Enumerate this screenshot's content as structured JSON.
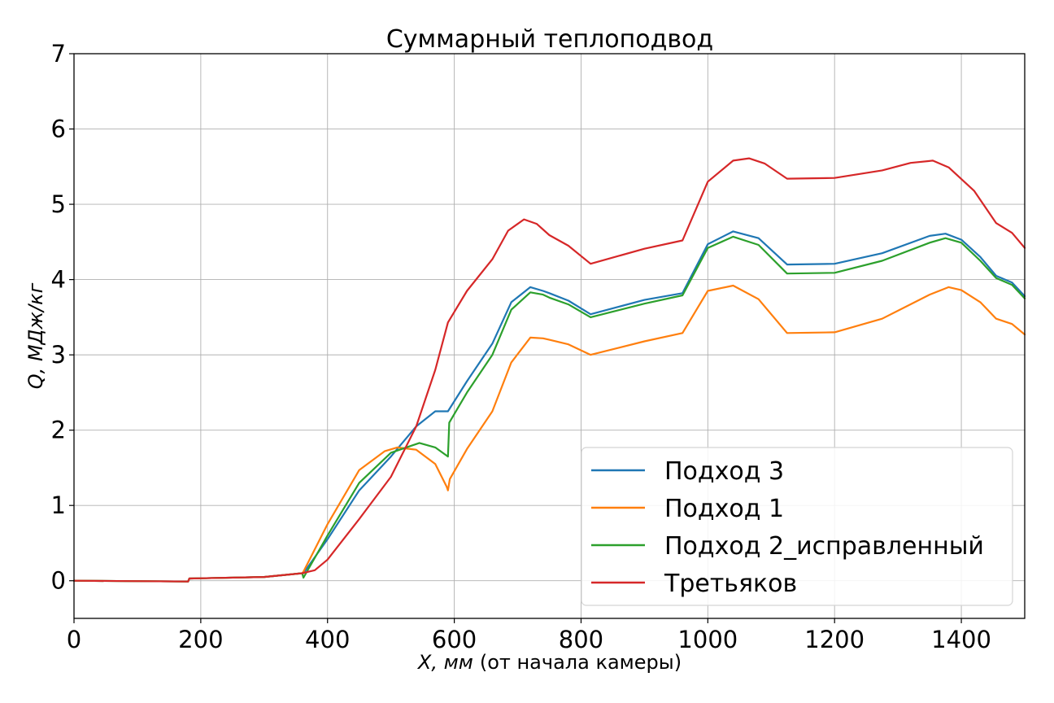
{
  "chart_data": {
    "type": "line",
    "title": "Суммарный теплоподвод",
    "xlabel_italic": "X, мм",
    "xlabel_rest": "(от начала камеры)",
    "ylabel": "Q, МДж/кг",
    "xlim": [
      0,
      1500
    ],
    "ylim": [
      -0.5,
      7
    ],
    "xticks": [
      0,
      200,
      400,
      600,
      800,
      1000,
      1200,
      1400
    ],
    "yticks": [
      0,
      1,
      2,
      3,
      4,
      5,
      6,
      7
    ],
    "grid": true,
    "legend_position": "lower-right",
    "series": [
      {
        "name": "Подход 3",
        "color": "#1f77b4",
        "points": [
          [
            0,
            0
          ],
          [
            180,
            -0.01
          ],
          [
            182,
            0.03
          ],
          [
            300,
            0.05
          ],
          [
            360,
            0.1
          ],
          [
            362,
            0.1
          ],
          [
            400,
            0.55
          ],
          [
            450,
            1.2
          ],
          [
            500,
            1.65
          ],
          [
            540,
            2.05
          ],
          [
            570,
            2.25
          ],
          [
            590,
            2.25
          ],
          [
            620,
            2.65
          ],
          [
            660,
            3.15
          ],
          [
            690,
            3.7
          ],
          [
            720,
            3.9
          ],
          [
            740,
            3.85
          ],
          [
            750,
            3.82
          ],
          [
            780,
            3.72
          ],
          [
            815,
            3.54
          ],
          [
            900,
            3.73
          ],
          [
            960,
            3.82
          ],
          [
            1000,
            4.47
          ],
          [
            1040,
            4.64
          ],
          [
            1080,
            4.55
          ],
          [
            1125,
            4.2
          ],
          [
            1200,
            4.21
          ],
          [
            1275,
            4.35
          ],
          [
            1350,
            4.58
          ],
          [
            1375,
            4.61
          ],
          [
            1400,
            4.53
          ],
          [
            1430,
            4.3
          ],
          [
            1455,
            4.05
          ],
          [
            1480,
            3.96
          ],
          [
            1500,
            3.78
          ]
        ]
      },
      {
        "name": "Подход 1",
        "color": "#ff7f0e",
        "points": [
          [
            0,
            0
          ],
          [
            180,
            -0.01
          ],
          [
            182,
            0.03
          ],
          [
            300,
            0.05
          ],
          [
            360,
            0.1
          ],
          [
            362,
            0.12
          ],
          [
            400,
            0.75
          ],
          [
            450,
            1.47
          ],
          [
            490,
            1.72
          ],
          [
            510,
            1.77
          ],
          [
            540,
            1.74
          ],
          [
            570,
            1.55
          ],
          [
            588,
            1.25
          ],
          [
            590,
            1.2
          ],
          [
            593,
            1.35
          ],
          [
            620,
            1.75
          ],
          [
            660,
            2.25
          ],
          [
            690,
            2.9
          ],
          [
            720,
            3.23
          ],
          [
            740,
            3.22
          ],
          [
            750,
            3.2
          ],
          [
            780,
            3.14
          ],
          [
            815,
            3.0
          ],
          [
            900,
            3.18
          ],
          [
            960,
            3.29
          ],
          [
            1000,
            3.85
          ],
          [
            1040,
            3.92
          ],
          [
            1080,
            3.74
          ],
          [
            1125,
            3.29
          ],
          [
            1200,
            3.3
          ],
          [
            1275,
            3.48
          ],
          [
            1350,
            3.8
          ],
          [
            1380,
            3.9
          ],
          [
            1400,
            3.86
          ],
          [
            1430,
            3.7
          ],
          [
            1455,
            3.48
          ],
          [
            1480,
            3.41
          ],
          [
            1500,
            3.27
          ]
        ]
      },
      {
        "name": "Подход 2_исправленный",
        "color": "#2ca02c",
        "points": [
          [
            0,
            0
          ],
          [
            180,
            -0.01
          ],
          [
            182,
            0.03
          ],
          [
            300,
            0.05
          ],
          [
            360,
            0.1
          ],
          [
            362,
            0.04
          ],
          [
            400,
            0.6
          ],
          [
            450,
            1.3
          ],
          [
            500,
            1.7
          ],
          [
            545,
            1.83
          ],
          [
            570,
            1.77
          ],
          [
            590,
            1.65
          ],
          [
            592,
            2.1
          ],
          [
            620,
            2.5
          ],
          [
            660,
            3.0
          ],
          [
            690,
            3.6
          ],
          [
            720,
            3.83
          ],
          [
            740,
            3.8
          ],
          [
            750,
            3.76
          ],
          [
            780,
            3.67
          ],
          [
            815,
            3.5
          ],
          [
            900,
            3.68
          ],
          [
            960,
            3.79
          ],
          [
            1000,
            4.42
          ],
          [
            1040,
            4.57
          ],
          [
            1080,
            4.46
          ],
          [
            1125,
            4.08
          ],
          [
            1200,
            4.09
          ],
          [
            1275,
            4.25
          ],
          [
            1350,
            4.49
          ],
          [
            1375,
            4.55
          ],
          [
            1400,
            4.49
          ],
          [
            1430,
            4.25
          ],
          [
            1455,
            4.02
          ],
          [
            1480,
            3.93
          ],
          [
            1500,
            3.75
          ]
        ]
      },
      {
        "name": "Третьяков",
        "color": "#d62728",
        "points": [
          [
            0,
            0
          ],
          [
            180,
            -0.01
          ],
          [
            182,
            0.03
          ],
          [
            300,
            0.05
          ],
          [
            360,
            0.1
          ],
          [
            380,
            0.14
          ],
          [
            400,
            0.28
          ],
          [
            450,
            0.82
          ],
          [
            500,
            1.38
          ],
          [
            540,
            2.05
          ],
          [
            570,
            2.8
          ],
          [
            590,
            3.43
          ],
          [
            620,
            3.85
          ],
          [
            660,
            4.27
          ],
          [
            685,
            4.65
          ],
          [
            710,
            4.8
          ],
          [
            730,
            4.74
          ],
          [
            750,
            4.59
          ],
          [
            780,
            4.45
          ],
          [
            815,
            4.21
          ],
          [
            900,
            4.41
          ],
          [
            960,
            4.52
          ],
          [
            1000,
            5.3
          ],
          [
            1040,
            5.58
          ],
          [
            1065,
            5.61
          ],
          [
            1090,
            5.54
          ],
          [
            1125,
            5.34
          ],
          [
            1200,
            5.35
          ],
          [
            1275,
            5.45
          ],
          [
            1320,
            5.55
          ],
          [
            1355,
            5.58
          ],
          [
            1380,
            5.49
          ],
          [
            1420,
            5.18
          ],
          [
            1455,
            4.75
          ],
          [
            1480,
            4.62
          ],
          [
            1500,
            4.42
          ]
        ]
      }
    ]
  }
}
